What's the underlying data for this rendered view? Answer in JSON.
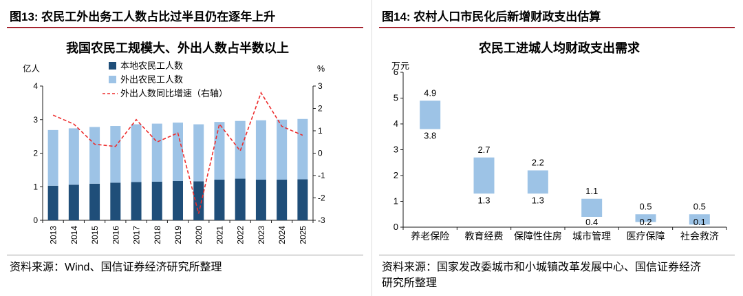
{
  "colors": {
    "header_rule": "#a6242f",
    "source_rule": "#9c9c9c",
    "panel_divider": "#dcdcdc",
    "axis": "#1a1a1a",
    "local_bar": "#1F4E79",
    "outgoing_bar": "#9DC3E6",
    "growth_line": "#ED2D2D",
    "range_bar": "#9DC3E6"
  },
  "figures": {
    "left": {
      "header": "图13: 农民工外出务工人数占比过半且仍在逐年上升",
      "source": "资料来源：Wind、国信证券经济研究所整理"
    },
    "right": {
      "header": "图14: 农村人口市民化后新增财政支出估算",
      "source_lines": [
        "资料来源：国家发改委城市和小城镇改革发展中心、国信证券经济",
        "研究所整理"
      ]
    }
  },
  "chart_data": [
    {
      "type": "bar",
      "subtype": "stacked-bar-with-line",
      "title": "我国农民工规模大、外出人数占半数以上",
      "categories": [
        "2013",
        "2014",
        "2015",
        "2016",
        "2017",
        "2018",
        "2019",
        "2020",
        "2021",
        "2022",
        "2023",
        "2024",
        "2025"
      ],
      "series": [
        {
          "name": "本地农民工人数",
          "kind": "bar",
          "color": "#1F4E79",
          "values": [
            1.03,
            1.06,
            1.09,
            1.12,
            1.14,
            1.15,
            1.17,
            1.16,
            1.21,
            1.24,
            1.21,
            1.21,
            1.22
          ]
        },
        {
          "name": "外出农民工人数",
          "kind": "bar",
          "color": "#9DC3E6",
          "values": [
            1.66,
            1.68,
            1.69,
            1.69,
            1.72,
            1.73,
            1.74,
            1.7,
            1.72,
            1.72,
            1.77,
            1.79,
            1.8
          ]
        },
        {
          "name": "外出人数同比增速（右轴）",
          "kind": "line",
          "axis": "right",
          "color": "#ED2D2D",
          "dashed": true,
          "values": [
            1.7,
            1.3,
            0.4,
            0.3,
            1.5,
            0.5,
            0.9,
            -2.7,
            1.3,
            0.1,
            2.7,
            1.2,
            0.8
          ]
        }
      ],
      "left_axis": {
        "label": "亿人",
        "min": 0,
        "max": 4,
        "step": 1
      },
      "right_axis": {
        "label": "%",
        "min": -3,
        "max": 3,
        "step": 1
      },
      "legend_position": "top-center",
      "grid": false
    },
    {
      "type": "bar",
      "subtype": "floating-range-bar",
      "title": "农民工进城人均财政支出需求",
      "categories": [
        "养老保险",
        "教育经费",
        "保障性住房",
        "城市管理",
        "医疗保障",
        "社会救济"
      ],
      "low": [
        3.8,
        1.3,
        1.3,
        0.4,
        0.2,
        0.1
      ],
      "high": [
        4.9,
        2.7,
        2.2,
        1.1,
        0.5,
        0.5
      ],
      "bar_color": "#9DC3E6",
      "y_axis": {
        "label": "万元",
        "min": 0,
        "max": 6,
        "step": 1
      },
      "grid": false
    }
  ]
}
